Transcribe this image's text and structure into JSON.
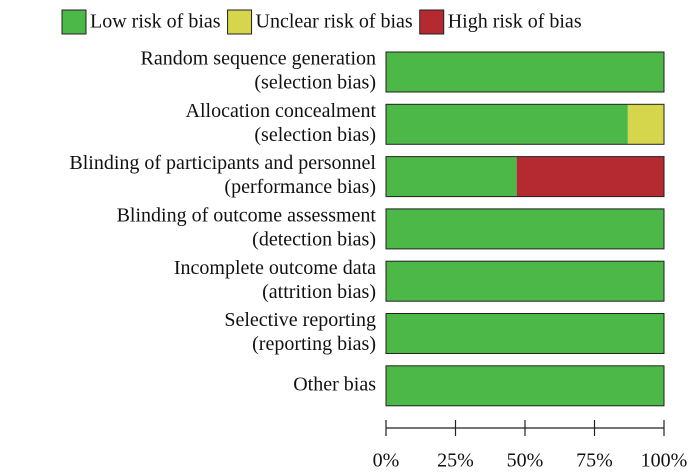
{
  "chart_data": {
    "type": "stacked-bar-horizontal",
    "categories": [
      [
        "Random sequence generation",
        "(selection bias)"
      ],
      [
        "Allocation concealment",
        "(selection bias)"
      ],
      [
        "Blinding of participants and personnel",
        "(performance bias)"
      ],
      [
        "Blinding of outcome assessment",
        "(detection bias)"
      ],
      [
        "Incomplete outcome data",
        "(attrition bias)"
      ],
      [
        "Selective reporting",
        "(reporting bias)"
      ],
      [
        "Other bias"
      ]
    ],
    "series": [
      {
        "name": "Low risk of bias",
        "color": "#4cb848",
        "values": [
          100,
          87,
          47,
          100,
          100,
          100,
          100
        ]
      },
      {
        "name": "Unclear risk of bias",
        "color": "#d6d64c",
        "values": [
          0,
          13,
          0,
          0,
          0,
          0,
          0
        ]
      },
      {
        "name": "High risk of bias",
        "color": "#b52a30",
        "values": [
          0,
          0,
          53,
          0,
          0,
          0,
          0
        ]
      }
    ],
    "xlim": [
      0,
      100
    ],
    "xticks": [
      {
        "value": 0,
        "label": "0%"
      },
      {
        "value": 25,
        "label": "25%"
      },
      {
        "value": 50,
        "label": "50%"
      },
      {
        "value": 75,
        "label": "75%"
      },
      {
        "value": 100,
        "label": "100%"
      }
    ],
    "legend": "top"
  }
}
